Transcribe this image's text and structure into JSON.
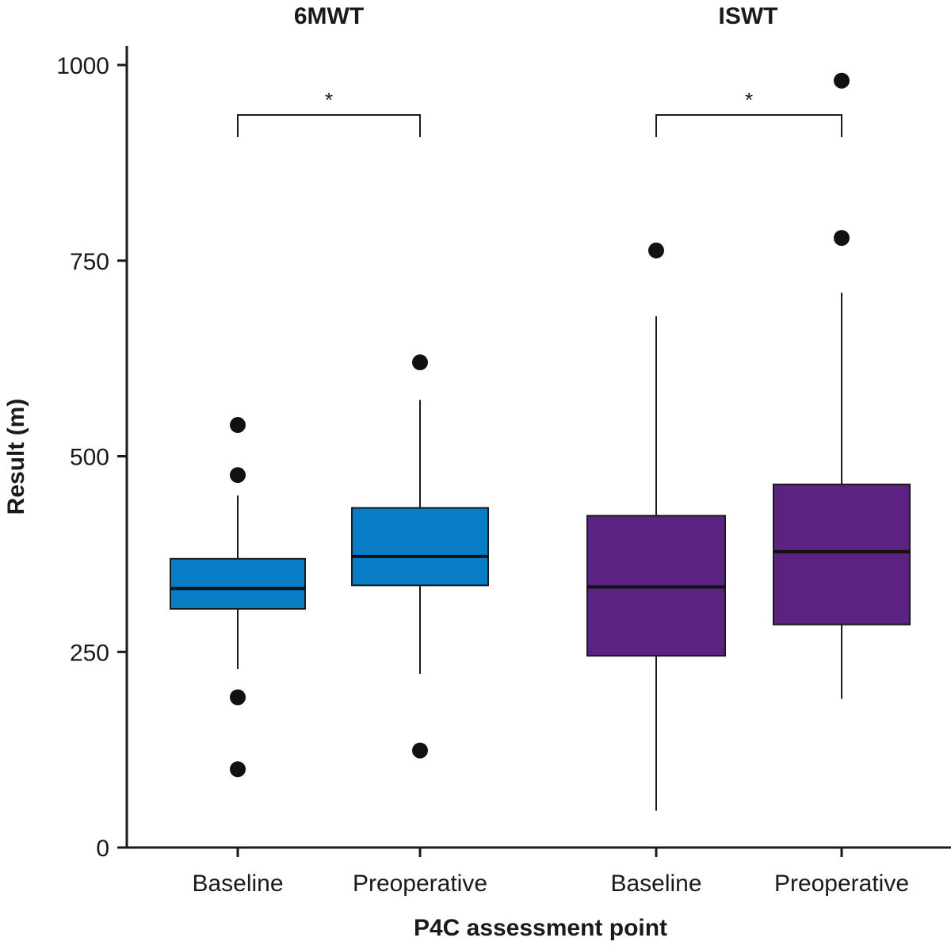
{
  "chart_data": {
    "type": "box",
    "ylabel": "Result (m)",
    "xlabel": "P4C assessment point",
    "ylim": [
      0,
      1000
    ],
    "yticks": [
      0,
      250,
      500,
      750,
      1000
    ],
    "grid": false,
    "groups": [
      {
        "title": "6MWT",
        "color": "#0a7dc7",
        "significance": "*",
        "boxes": [
          {
            "category": "Baseline",
            "whisker_low": 228,
            "q1": 305,
            "median": 331,
            "q3": 369,
            "whisker_high": 450,
            "outliers": [
              540,
              476,
              192,
              100
            ]
          },
          {
            "category": "Preoperative",
            "whisker_low": 222,
            "q1": 335,
            "median": 372,
            "q3": 434,
            "whisker_high": 572,
            "outliers": [
              620,
              124
            ]
          }
        ]
      },
      {
        "title": "ISWT",
        "color": "#5b2281",
        "significance": "*",
        "boxes": [
          {
            "category": "Baseline",
            "whisker_low": 47,
            "q1": 245,
            "median": 333,
            "q3": 424,
            "whisker_high": 679,
            "outliers": [
              763
            ]
          },
          {
            "category": "Preoperative",
            "whisker_low": 190,
            "q1": 285,
            "median": 378,
            "q3": 464,
            "whisker_high": 709,
            "outliers": [
              980,
              779
            ]
          }
        ]
      }
    ]
  }
}
